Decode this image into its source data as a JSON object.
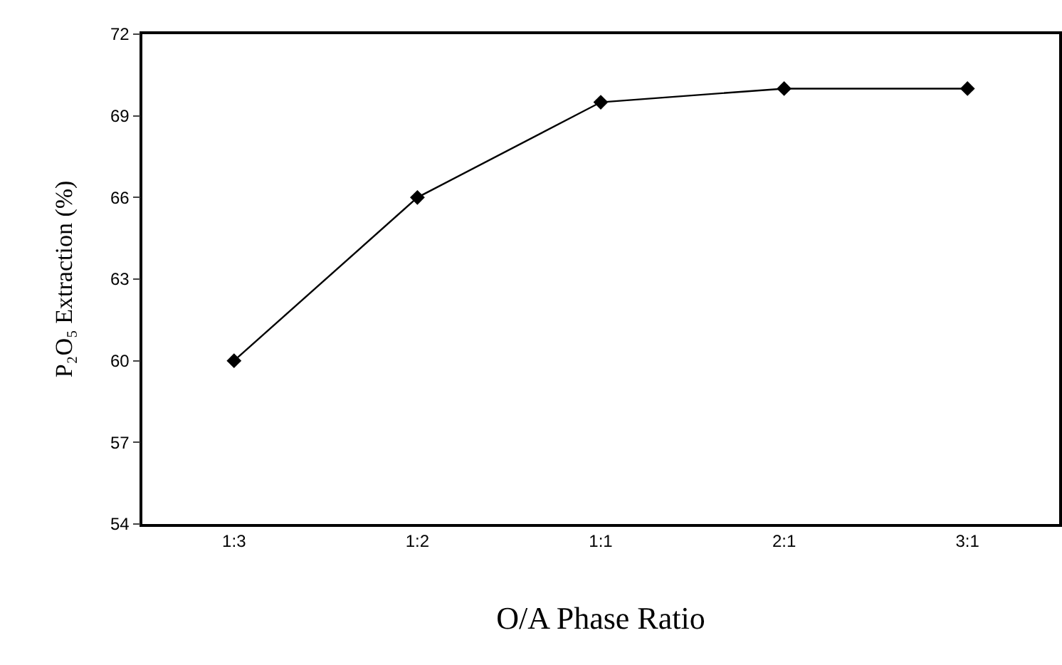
{
  "chart_data": {
    "type": "line",
    "xlabel": "O/A Phase Ratio",
    "ylabel": "P₂O₅ Extraction (%)",
    "categories": [
      "1:3",
      "1:2",
      "1:1",
      "2:1",
      "3:1"
    ],
    "series": [
      {
        "color": "#000000",
        "values": [
          60,
          66,
          69.5,
          70,
          70
        ]
      }
    ],
    "ylim": [
      54,
      72
    ],
    "yticks": [
      54,
      57,
      60,
      63,
      66,
      69,
      72
    ],
    "marker": "diamond",
    "line_style": "solid"
  }
}
